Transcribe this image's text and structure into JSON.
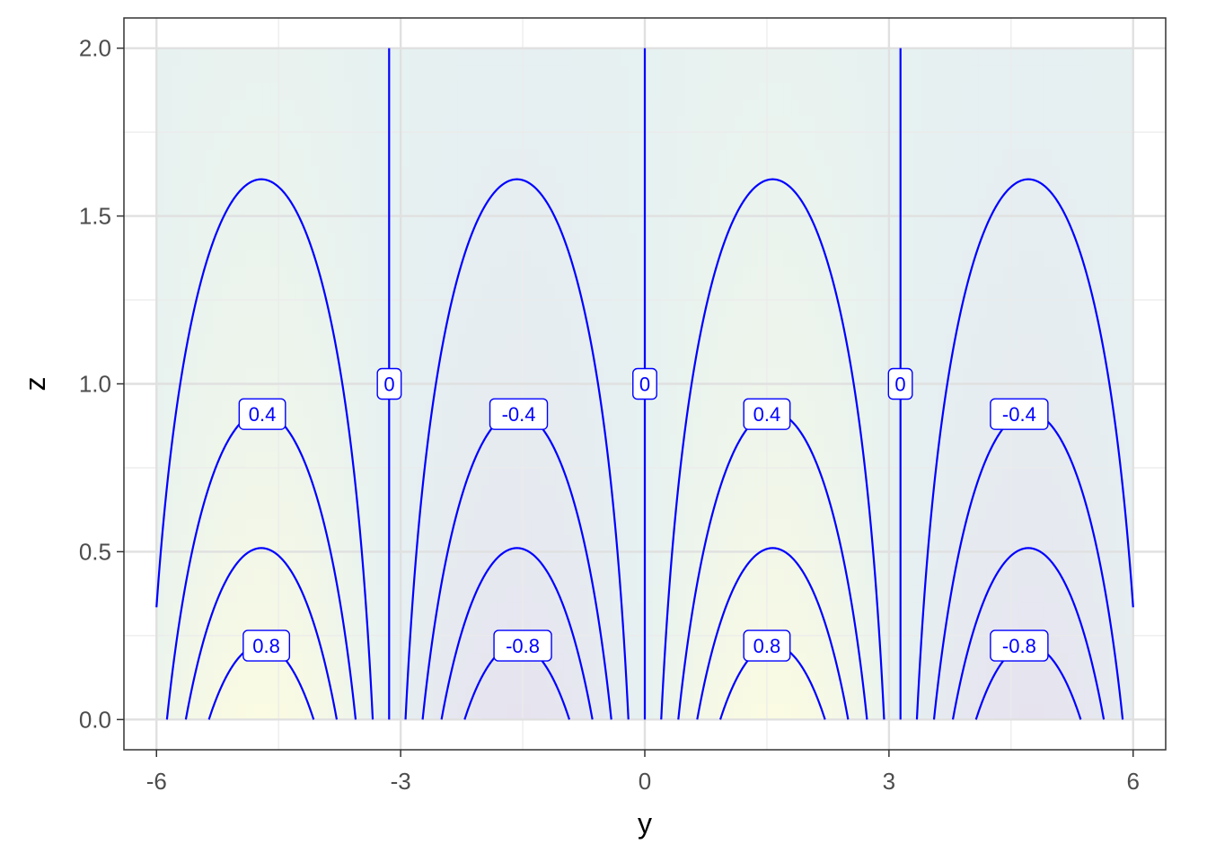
{
  "chart_data": {
    "type": "contour",
    "title": "",
    "xlabel": "y",
    "ylabel": "z",
    "xlim": [
      -6.4,
      6.4
    ],
    "ylim": [
      -0.09,
      2.09
    ],
    "x_ticks": [
      -6,
      -3,
      0,
      3,
      6
    ],
    "x_tick_labels": [
      "-6",
      "-3",
      "0",
      "3",
      "6"
    ],
    "y_ticks": [
      0.0,
      0.5,
      1.0,
      1.5,
      2.0
    ],
    "y_tick_labels": [
      "0.0",
      "0.5",
      "1.0",
      "1.5",
      "2.0"
    ],
    "grid": true,
    "surface": "sin(y) * exp(-z)",
    "data_range": {
      "y": [
        -6,
        6
      ],
      "z": [
        0,
        2
      ]
    },
    "contour_levels": [
      -0.8,
      -0.6,
      -0.4,
      -0.2,
      0,
      0.2,
      0.4,
      0.6,
      0.8
    ],
    "contour_color": "#0000ff",
    "fill_colors": {
      "low": "#e6e3ef",
      "mid": "#e6f1f1",
      "high": "#fbfbe2"
    },
    "contour_labels": [
      {
        "text": "0",
        "y": -3.14,
        "z": 1.0
      },
      {
        "text": "0",
        "y": 0.0,
        "z": 1.0
      },
      {
        "text": "0",
        "y": 3.14,
        "z": 1.0
      },
      {
        "text": "0.4",
        "y": -4.7,
        "z": 0.91
      },
      {
        "text": "-0.4",
        "y": -1.55,
        "z": 0.91
      },
      {
        "text": "0.4",
        "y": 1.5,
        "z": 0.91
      },
      {
        "text": "-0.4",
        "y": 4.6,
        "z": 0.91
      },
      {
        "text": "0.8",
        "y": -4.65,
        "z": 0.22
      },
      {
        "text": "-0.8",
        "y": -1.5,
        "z": 0.22
      },
      {
        "text": "0.8",
        "y": 1.5,
        "z": 0.22
      },
      {
        "text": "-0.8",
        "y": 4.6,
        "z": 0.22
      }
    ]
  }
}
